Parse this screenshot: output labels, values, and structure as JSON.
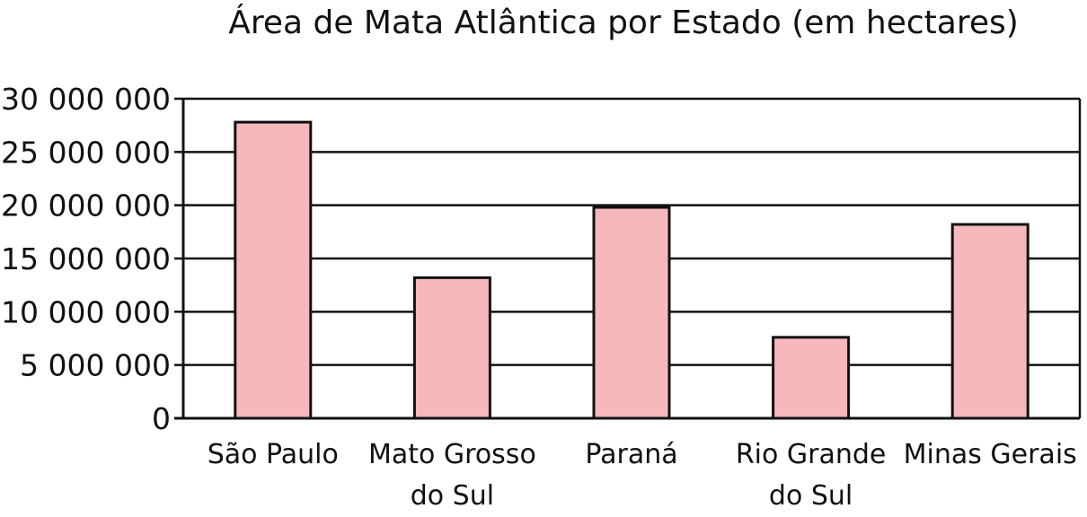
{
  "chart_data": {
    "type": "bar",
    "title": "Área de Mata Atlântica por Estado (em hectares)",
    "xlabel": "",
    "ylabel": "",
    "categories": [
      [
        "São Paulo"
      ],
      [
        "Mato Grosso",
        "do Sul"
      ],
      [
        "Paraná"
      ],
      [
        "Rio Grande",
        "do Sul"
      ],
      [
        "Minas Gerais"
      ]
    ],
    "values": [
      27800000,
      13200000,
      19800000,
      7600000,
      18200000
    ],
    "ylim": [
      0,
      30000000
    ],
    "yticks": [
      0,
      5000000,
      10000000,
      15000000,
      20000000,
      25000000,
      30000000
    ],
    "ytick_labels": [
      "0",
      "5 000 000",
      "10 000 000",
      "15 000 000",
      "20 000 000",
      "25 000 000",
      "30 000 000"
    ],
    "grid": true,
    "legend": "none",
    "colors": {
      "bar_fill": "#f7b8bb",
      "bar_stroke": "#111111",
      "grid": "#111111",
      "axis": "#111111"
    }
  }
}
